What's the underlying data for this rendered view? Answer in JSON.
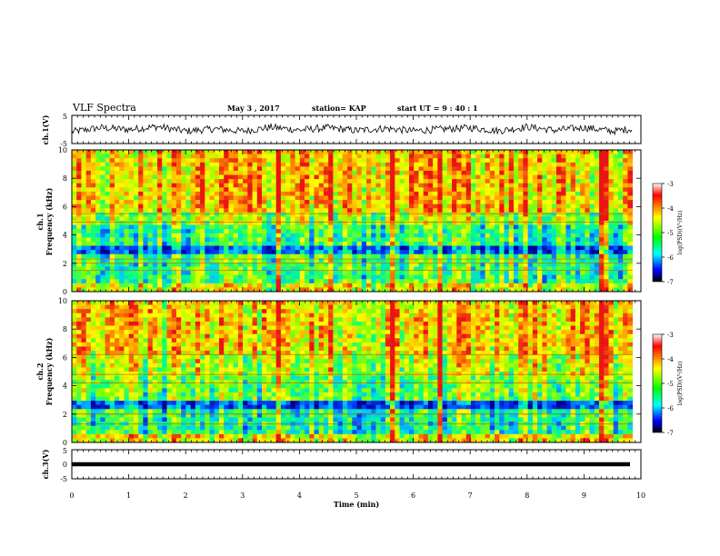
{
  "header": {
    "title": "VLF Spectra",
    "date": "May 3 , 2017",
    "station": "station= KAP",
    "start": "start UT = 9 : 40 : 1"
  },
  "chart_data": [
    {
      "type": "line",
      "panel": "ch1-waveform",
      "ylabel": "ch.1(V)",
      "ylim": [
        -5,
        5
      ],
      "yticks": [
        "5",
        "-5"
      ],
      "xlim": [
        0,
        10
      ],
      "x": [
        0,
        0.5,
        1,
        1.5,
        2,
        2.5,
        3,
        3.5,
        4,
        4.5,
        5,
        5.5,
        6,
        6.5,
        7,
        7.5,
        8,
        8.5,
        9,
        9.5,
        9.85
      ],
      "y": [
        -0.8,
        0.6,
        0.0,
        1.0,
        -0.6,
        0.2,
        -0.6,
        0.8,
        -0.2,
        0.6,
        -0.4,
        0.4,
        -0.5,
        0.1,
        0.6,
        -0.5,
        0.9,
        -0.3,
        0.7,
        -0.6,
        0.2
      ],
      "color": "#000000"
    },
    {
      "type": "heatmap",
      "panel": "ch1-spectrogram",
      "ylabel": "ch.1\nFrequency (kHz)",
      "ylim": [
        0,
        10
      ],
      "yticks": [
        "0",
        "2",
        "4",
        "6",
        "8",
        "10"
      ],
      "xlim": [
        0,
        10
      ],
      "colorbar": {
        "label": "log(PSD)(V²/Hz)",
        "range": [
          -7,
          -3
        ],
        "ticks": [
          "-3",
          "-4",
          "-5",
          "-6",
          "-7"
        ]
      },
      "bright_vertical_bands_min": [
        3.65,
        4.55,
        5.65,
        6.45,
        7.95,
        9.35
      ]
    },
    {
      "type": "heatmap",
      "panel": "ch2-spectrogram",
      "ylabel": "ch.2\nFrequency (kHz)",
      "ylim": [
        0,
        10
      ],
      "yticks": [
        "0",
        "2",
        "4",
        "6",
        "8",
        "10"
      ],
      "xlim": [
        0,
        10
      ],
      "colorbar": {
        "label": "log(PSD)(V²/Hz)",
        "range": [
          -7,
          -3
        ],
        "ticks": [
          "-3",
          "-4",
          "-5",
          "-6",
          "-7"
        ]
      },
      "bright_vertical_bands_min": [
        3.65,
        4.55,
        5.65,
        6.45,
        7.95,
        9.35
      ]
    },
    {
      "type": "line",
      "panel": "ch3-waveform",
      "ylabel": "ch.3(V)",
      "ylim": [
        -5,
        5
      ],
      "yticks": [
        "5",
        "0",
        "-5"
      ],
      "xlim": [
        0,
        10
      ],
      "x": [
        0,
        9.85
      ],
      "y": [
        0,
        0
      ],
      "xlabel": "Time (min)",
      "xticks": [
        "0",
        "1",
        "2",
        "3",
        "4",
        "5",
        "6",
        "7",
        "8",
        "9",
        "10"
      ],
      "color": "#000000"
    }
  ]
}
